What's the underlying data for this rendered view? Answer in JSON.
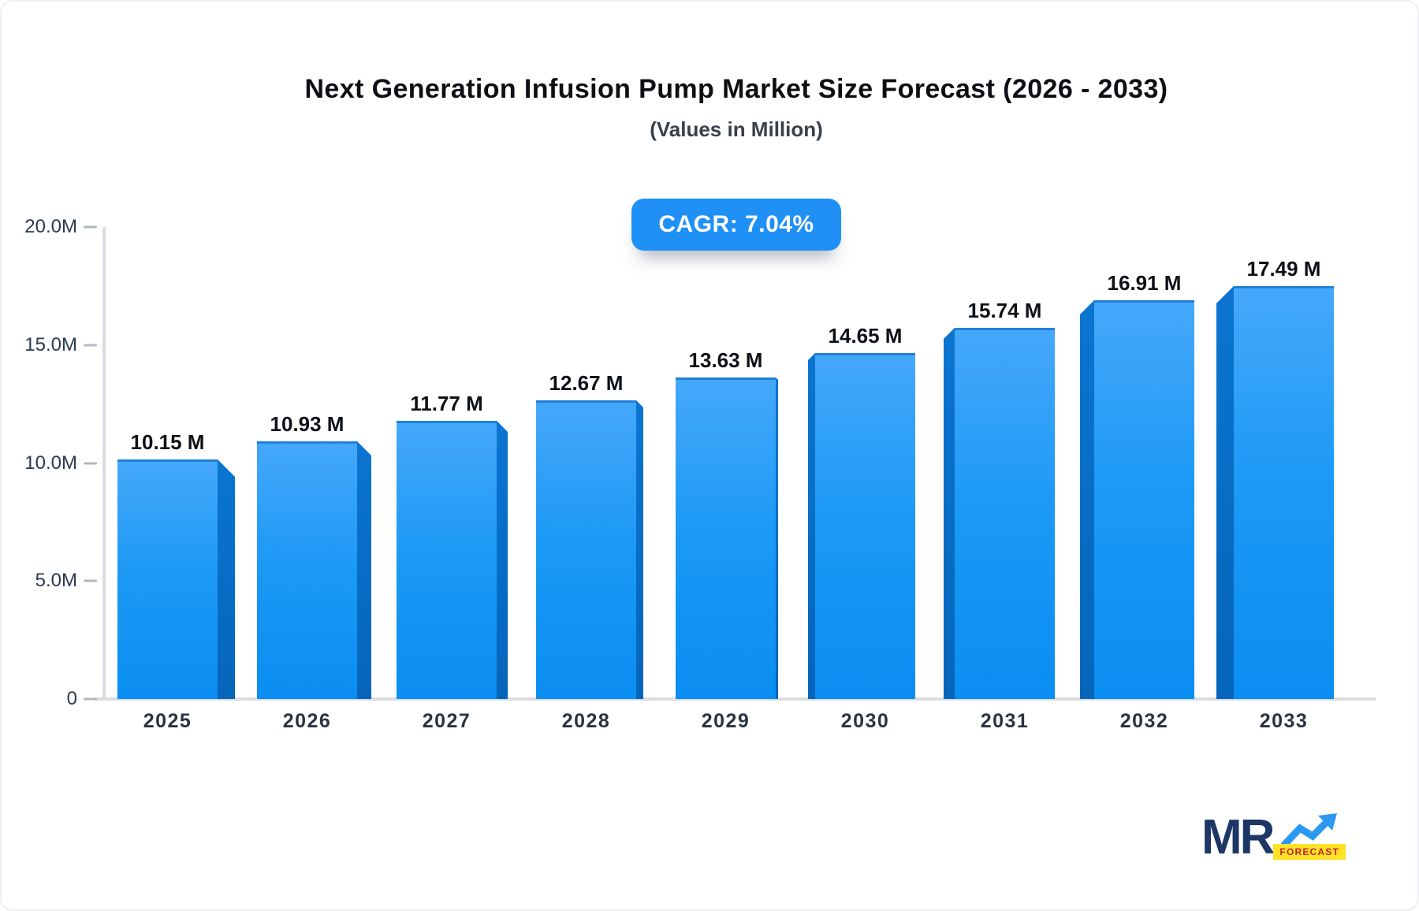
{
  "chart_data": {
    "type": "bar",
    "title": "Next Generation Infusion Pump Market Size Forecast (2026 - 2033)",
    "subtitle": "(Values in Million)",
    "annotation": "CAGR: 7.04%",
    "categories": [
      "2025",
      "2026",
      "2027",
      "2028",
      "2029",
      "2030",
      "2031",
      "2032",
      "2033"
    ],
    "values": [
      10.15,
      10.93,
      11.77,
      12.67,
      13.63,
      14.65,
      15.74,
      16.91,
      17.49
    ],
    "value_labels": [
      "10.15 M",
      "10.93 M",
      "11.77 M",
      "12.67 M",
      "13.63 M",
      "14.65 M",
      "15.74 M",
      "16.91 M",
      "17.49 M"
    ],
    "unit": "Million",
    "ylim": [
      0,
      20
    ],
    "y_ticks": [
      {
        "label": "20.0M",
        "value": 20
      },
      {
        "label": "15.0M",
        "value": 15
      },
      {
        "label": "10.0M",
        "value": 10
      },
      {
        "label": "5.0M",
        "value": 5
      },
      {
        "label": "0",
        "value": 0
      }
    ],
    "grid": false,
    "legend_position": null,
    "bar_style": "3d-perspective-center",
    "colors": {
      "bar_top": "#45a8fa",
      "bar_bottom": "#0a8ef1",
      "bar_side": "#0668bd",
      "bar_top_edge": "#2180d8",
      "axis": "#d9dce1",
      "tick": "#b3b9c1",
      "value_label": "#0d1117",
      "cagr_bg": "#1e90f6",
      "cagr_text": "#ffffff"
    }
  },
  "logo": {
    "mr": "MR",
    "forecast": "FORECAST",
    "colors": {
      "mr_text": "#1c3766",
      "arrow": "#2b99f1",
      "forecast_bg": "#ffe226",
      "forecast_text": "#c02231"
    }
  }
}
